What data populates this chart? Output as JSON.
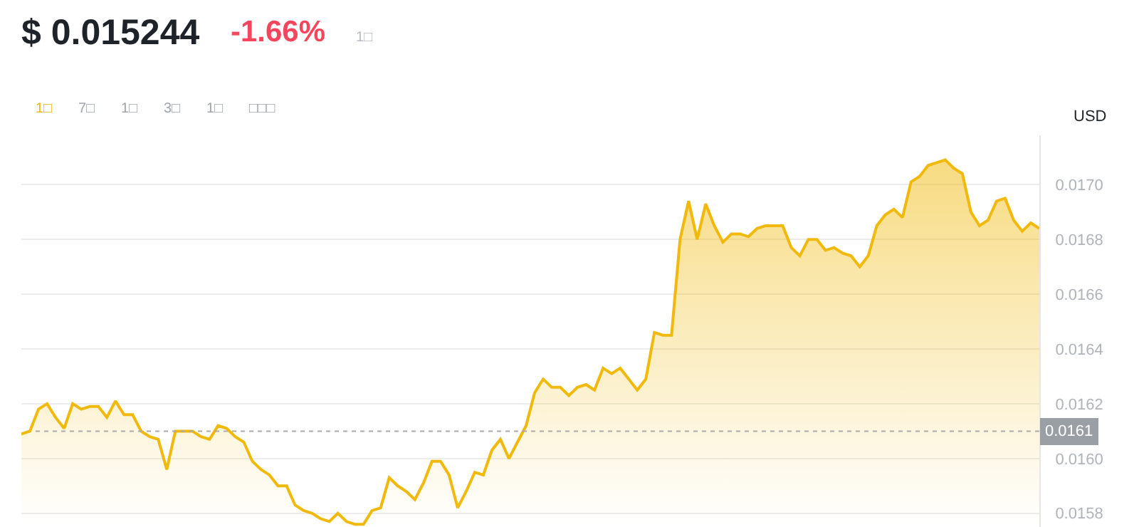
{
  "chart_data": {
    "type": "area",
    "title": "$ 0.015244",
    "annotations": [
      "-1.66%",
      "1□",
      "1□",
      "7□",
      "1□",
      "3□",
      "1□",
      "□□□"
    ],
    "ylabel": "USD",
    "categories": [
      null,
      null,
      null,
      null,
      null,
      null,
      null,
      null,
      null,
      null,
      null,
      null,
      null,
      null,
      null,
      null,
      null,
      null,
      null,
      null,
      null,
      null,
      null,
      null,
      null,
      null,
      null,
      null,
      null,
      null,
      null,
      null,
      null,
      null,
      null,
      null,
      null,
      null,
      null,
      null,
      null,
      null,
      null,
      null,
      null,
      null,
      null,
      null,
      null,
      null,
      null,
      null,
      null,
      null,
      null,
      null,
      null,
      null,
      null,
      null,
      null,
      null,
      null,
      null,
      null,
      null,
      null,
      null,
      null,
      null,
      null,
      null,
      null,
      null,
      null,
      null,
      null,
      null,
      null,
      null,
      null,
      null,
      null,
      null,
      null,
      null,
      null,
      null,
      null,
      null,
      null,
      null,
      null,
      null,
      null,
      null,
      null,
      null,
      null,
      null,
      null,
      null,
      null,
      null,
      null,
      null,
      null,
      null,
      null,
      null,
      null,
      null,
      null,
      null,
      null,
      null,
      null,
      null,
      null,
      null
    ],
    "series": [
      {
        "color": "#f0b90b",
        "values": [
          0.01609,
          0.0161,
          0.01618,
          0.0162,
          0.01615,
          0.01611,
          0.0162,
          0.01618,
          0.01619,
          0.01619,
          0.01615,
          0.01621,
          0.01616,
          0.01616,
          0.0161,
          0.01608,
          0.01607,
          0.01596,
          0.0161,
          0.0161,
          0.0161,
          0.01608,
          0.01607,
          0.01612,
          0.01611,
          0.01608,
          0.01606,
          0.01599,
          0.01596,
          0.01594,
          0.0159,
          0.0159,
          0.01583,
          0.01581,
          0.0158,
          0.01578,
          0.01577,
          0.0158,
          0.01577,
          0.01576,
          0.01576,
          0.01581,
          0.01582,
          0.01593,
          0.0159,
          0.01588,
          0.01585,
          0.01591,
          0.01599,
          0.01599,
          0.01594,
          0.01582,
          0.01588,
          0.01595,
          0.01594,
          0.01603,
          0.01607,
          0.016,
          0.01606,
          0.01612,
          0.01624,
          0.01629,
          0.01626,
          0.01626,
          0.01623,
          0.01626,
          0.01627,
          0.01625,
          0.01633,
          0.01631,
          0.01633,
          0.01629,
          0.01625,
          0.01629,
          0.01646,
          0.01645,
          0.01645,
          0.0168,
          0.01694,
          0.0168,
          0.01693,
          0.01685,
          0.01679,
          0.01682,
          0.01682,
          0.01681,
          0.01684,
          0.01685,
          0.01685,
          0.01685,
          0.01677,
          0.01674,
          0.0168,
          0.0168,
          0.01676,
          0.01677,
          0.01675,
          0.01674,
          0.0167,
          0.01674,
          0.01685,
          0.01689,
          0.01691,
          0.01688,
          0.01701,
          0.01703,
          0.01707,
          0.01708,
          0.01709,
          0.01706,
          0.01704,
          0.0169,
          0.01685,
          0.01687,
          0.01694,
          0.01695,
          0.01687,
          0.01683,
          0.01686,
          0.01684
        ]
      }
    ],
    "ylim": [
      0.01575,
      0.01718
    ],
    "yticks": [
      0.0158,
      {
        "value": 0.016,
        "label": "0.0160"
      },
      0.0162,
      0.0164,
      0.0166,
      0.0168,
      {
        "value": 0.017,
        "label": "0.0170"
      }
    ],
    "tick_labels": "y",
    "grid": "y",
    "ref_lines": [
      {
        "axis": "y",
        "value": 0.0161,
        "label": "0.0161",
        "line_style": "dotted",
        "color": "#aaaaaa"
      }
    ]
  }
}
